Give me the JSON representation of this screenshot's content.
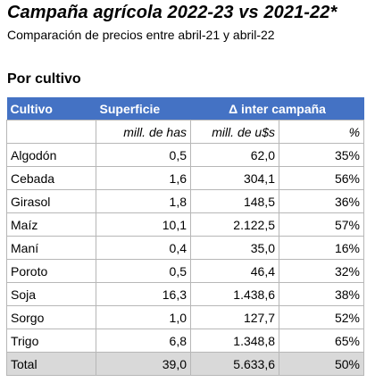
{
  "title": "Campaña agrícola 2022-23 vs 2021-22*",
  "subtitle": "Comparación de precios entre abril-21 y abril-22",
  "section": "Por cultivo",
  "header": {
    "cultivo": "Cultivo",
    "superficie": "Superficie",
    "delta": "Δ inter campaña"
  },
  "units": {
    "superficie": "mill. de has",
    "valor": "mill. de u$s",
    "pct": "%"
  },
  "rows": [
    {
      "cultivo": "Algodón",
      "superficie": "0,5",
      "valor": "62,0",
      "pct": "35%"
    },
    {
      "cultivo": "Cebada",
      "superficie": "1,6",
      "valor": "304,1",
      "pct": "56%"
    },
    {
      "cultivo": "Girasol",
      "superficie": "1,8",
      "valor": "148,5",
      "pct": "36%"
    },
    {
      "cultivo": "Maíz",
      "superficie": "10,1",
      "valor": "2.122,5",
      "pct": "57%"
    },
    {
      "cultivo": "Maní",
      "superficie": "0,4",
      "valor": "35,0",
      "pct": "16%"
    },
    {
      "cultivo": "Poroto",
      "superficie": "0,5",
      "valor": "46,4",
      "pct": "32%"
    },
    {
      "cultivo": "Soja",
      "superficie": "16,3",
      "valor": "1.438,6",
      "pct": "38%"
    },
    {
      "cultivo": "Sorgo",
      "superficie": "1,0",
      "valor": "127,7",
      "pct": "52%"
    },
    {
      "cultivo": "Trigo",
      "superficie": "6,8",
      "valor": "1.348,8",
      "pct": "65%"
    }
  ],
  "total": {
    "cultivo": "Total",
    "superficie": "39,0",
    "valor": "5.633,6",
    "pct": "50%"
  },
  "colors": {
    "header_bg": "#4472c4",
    "header_text": "#ffffff",
    "total_bg": "#d9d9d9",
    "border": "#b7b7b7"
  }
}
